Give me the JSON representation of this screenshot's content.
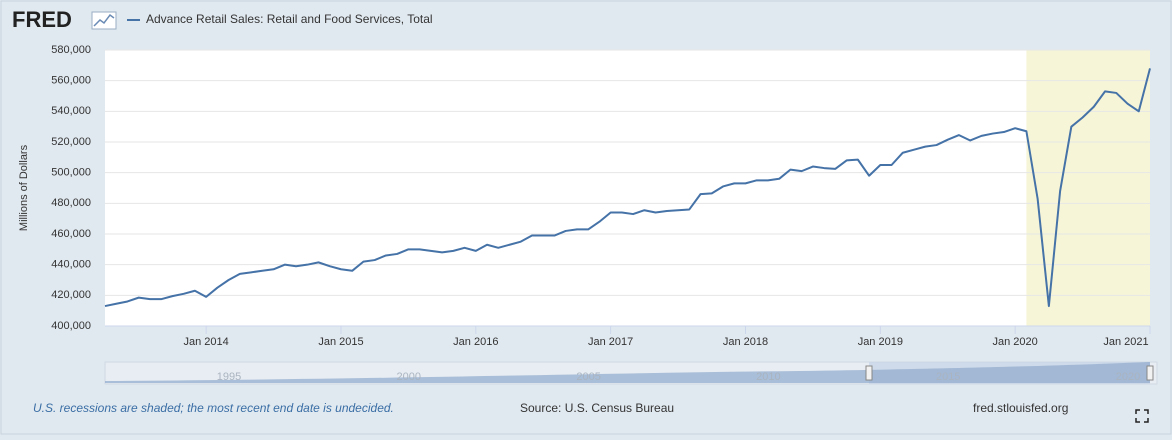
{
  "logo": "FRED",
  "navigator": {
    "labels": [
      "1995",
      "2000",
      "2005",
      "2010",
      "2015",
      "2020"
    ]
  },
  "footer": {
    "note": "U.S. recessions are shaded; the most recent end date is undecided.",
    "source": "Source: U.S. Census Bureau",
    "site": "fred.stlouisfed.org"
  },
  "chart_data": {
    "type": "line",
    "ylabel": "Millions of Dollars",
    "x": [
      "2013-04",
      "2013-05",
      "2013-06",
      "2013-07",
      "2013-08",
      "2013-09",
      "2013-10",
      "2013-11",
      "2013-12",
      "2014-01",
      "2014-02",
      "2014-03",
      "2014-04",
      "2014-05",
      "2014-06",
      "2014-07",
      "2014-08",
      "2014-09",
      "2014-10",
      "2014-11",
      "2014-12",
      "2015-01",
      "2015-02",
      "2015-03",
      "2015-04",
      "2015-05",
      "2015-06",
      "2015-07",
      "2015-08",
      "2015-09",
      "2015-10",
      "2015-11",
      "2015-12",
      "2016-01",
      "2016-02",
      "2016-03",
      "2016-04",
      "2016-05",
      "2016-06",
      "2016-07",
      "2016-08",
      "2016-09",
      "2016-10",
      "2016-11",
      "2016-12",
      "2017-01",
      "2017-02",
      "2017-03",
      "2017-04",
      "2017-05",
      "2017-06",
      "2017-07",
      "2017-08",
      "2017-09",
      "2017-10",
      "2017-11",
      "2017-12",
      "2018-01",
      "2018-02",
      "2018-03",
      "2018-04",
      "2018-05",
      "2018-06",
      "2018-07",
      "2018-08",
      "2018-09",
      "2018-10",
      "2018-11",
      "2018-12",
      "2019-01",
      "2019-02",
      "2019-03",
      "2019-04",
      "2019-05",
      "2019-06",
      "2019-07",
      "2019-08",
      "2019-09",
      "2019-10",
      "2019-11",
      "2019-12",
      "2020-01",
      "2020-02",
      "2020-03",
      "2020-04",
      "2020-05",
      "2020-06",
      "2020-07",
      "2020-08",
      "2020-09",
      "2020-10",
      "2020-11",
      "2020-12",
      "2021-01"
    ],
    "series": [
      {
        "name": "Advance Retail Sales: Retail and Food Services, Total",
        "color": "#4572a7",
        "values": [
          413000,
          414500,
          416000,
          418500,
          417500,
          417500,
          419500,
          421000,
          423000,
          419000,
          425000,
          430000,
          434000,
          435000,
          436000,
          437000,
          440000,
          439000,
          440000,
          441500,
          439000,
          437000,
          436000,
          442000,
          443000,
          446000,
          447000,
          450000,
          450000,
          449000,
          448000,
          449000,
          451000,
          449000,
          453000,
          451000,
          453000,
          455000,
          459000,
          459000,
          459000,
          462000,
          463000,
          463000,
          468000,
          474000,
          474000,
          473000,
          475500,
          474000,
          475000,
          475500,
          476000,
          486000,
          486500,
          491000,
          493000,
          493000,
          495000,
          495000,
          496000,
          502000,
          501000,
          504000,
          503000,
          502500,
          508000,
          508500,
          498000,
          505000,
          505000,
          513000,
          515000,
          517000,
          518000,
          521500,
          524500,
          521000,
          524000,
          525500,
          526500,
          529000,
          527000,
          483000,
          413000,
          488000,
          530000,
          536000,
          543000,
          553000,
          552000,
          545000,
          540000,
          568000
        ]
      }
    ],
    "shaded_region": [
      "2020-02",
      "2021-01"
    ],
    "shade_color": "#f7f5d8",
    "xlim": [
      "2013-04",
      "2021-01"
    ],
    "xticks": [
      {
        "value": "2014-01",
        "label": "Jan 2014"
      },
      {
        "value": "2015-01",
        "label": "Jan 2015"
      },
      {
        "value": "2016-01",
        "label": "Jan 2016"
      },
      {
        "value": "2017-01",
        "label": "Jan 2017"
      },
      {
        "value": "2018-01",
        "label": "Jan 2018"
      },
      {
        "value": "2019-01",
        "label": "Jan 2019"
      },
      {
        "value": "2020-01",
        "label": "Jan 2020"
      },
      {
        "value": "2021-01",
        "label": "Jan 2021"
      }
    ],
    "ylim": [
      400000,
      580000
    ],
    "yticks": [
      {
        "value": 400000,
        "label": "400,000"
      },
      {
        "value": 420000,
        "label": "420,000"
      },
      {
        "value": 440000,
        "label": "440,000"
      },
      {
        "value": 460000,
        "label": "460,000"
      },
      {
        "value": 480000,
        "label": "480,000"
      },
      {
        "value": 500000,
        "label": "500,000"
      },
      {
        "value": 520000,
        "label": "520,000"
      },
      {
        "value": 540000,
        "label": "540,000"
      },
      {
        "value": 560000,
        "label": "560,000"
      },
      {
        "value": 580000,
        "label": "580,000"
      }
    ],
    "grid": true
  }
}
